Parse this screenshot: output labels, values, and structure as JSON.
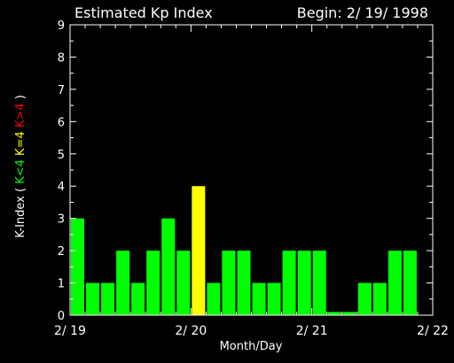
{
  "chart_data": {
    "type": "bar",
    "title": "Estimated Kp Index",
    "subtitle": "Begin: 2/ 19/ 1998",
    "xlabel": "Month/Day",
    "ylabel_parts": [
      {
        "text": "K-Index (",
        "color": "#ffffff"
      },
      {
        "text": "K<4",
        "color": "#00ff00"
      },
      {
        "text": "K=4",
        "color": "#ffff00"
      },
      {
        "text": "K>4",
        "color": "#ff0000"
      },
      {
        "text": ")",
        "color": "#ffffff"
      }
    ],
    "ylim": [
      0,
      9
    ],
    "yticks": [
      "0",
      "1",
      "2",
      "3",
      "4",
      "5",
      "6",
      "7",
      "8",
      "9"
    ],
    "xticks": [
      "2/ 19",
      "2/ 20",
      "2/ 21",
      "2/ 22"
    ],
    "bins_per_day": 8,
    "values": [
      3,
      1,
      1,
      2,
      1,
      2,
      3,
      2,
      4,
      1,
      2,
      2,
      1,
      1,
      2,
      2,
      2,
      0.1,
      0.1,
      1,
      1,
      2,
      2
    ],
    "colors": {
      "below": "#00ff00",
      "equal": "#ffff00",
      "above": "#ff0000",
      "axis": "#ffffff"
    }
  }
}
